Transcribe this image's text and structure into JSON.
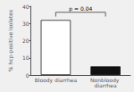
{
  "chart_data": {
    "type": "bar",
    "categories": [
      "Bloody diarrhea",
      "Nonbloody diarrhea"
    ],
    "values": [
      32,
      5
    ],
    "colors": [
      "#ffffff",
      "#111111"
    ],
    "ylabel": "% hcp-positive isolates",
    "ylim": [
      0,
      40
    ],
    "yticks": [
      0,
      10,
      20,
      30,
      40
    ],
    "grid": false,
    "significance": {
      "text": "p = 0.04",
      "y": 36.5,
      "y_start": 34,
      "y_end": 34
    }
  }
}
